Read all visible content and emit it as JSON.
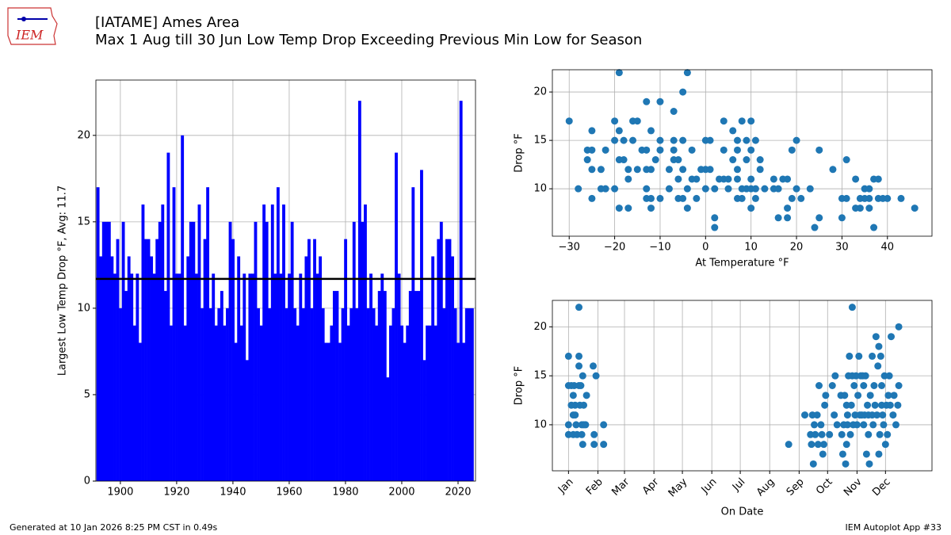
{
  "header": {
    "logo": "IEM",
    "title": "[IATAME] Ames Area",
    "subtitle": "Max 1 Aug till 30 Jun Low Temp Drop Exceeding Previous Min Low for Season"
  },
  "footer": {
    "left": "Generated at 10 Jan 2026 8:25 PM CST in 0.49s",
    "right": "IEM Autoplot App #33"
  },
  "chart_data": [
    {
      "type": "bar",
      "ylabel": "Largest Low Temp Drop °F, Avg: 11.7",
      "mean": 11.7,
      "color": "blue",
      "grid": true,
      "x": [
        1892,
        1893,
        1894,
        1895,
        1896,
        1897,
        1898,
        1899,
        1900,
        1901,
        1902,
        1903,
        1904,
        1905,
        1906,
        1907,
        1908,
        1909,
        1910,
        1911,
        1912,
        1913,
        1914,
        1915,
        1916,
        1917,
        1918,
        1919,
        1920,
        1921,
        1922,
        1923,
        1924,
        1925,
        1926,
        1927,
        1928,
        1929,
        1930,
        1931,
        1932,
        1933,
        1934,
        1935,
        1936,
        1937,
        1938,
        1939,
        1940,
        1941,
        1942,
        1943,
        1944,
        1945,
        1946,
        1947,
        1948,
        1949,
        1950,
        1951,
        1952,
        1953,
        1954,
        1955,
        1956,
        1957,
        1958,
        1959,
        1960,
        1961,
        1962,
        1963,
        1964,
        1965,
        1966,
        1967,
        1968,
        1969,
        1970,
        1971,
        1972,
        1973,
        1974,
        1975,
        1976,
        1977,
        1978,
        1979,
        1980,
        1981,
        1982,
        1983,
        1984,
        1985,
        1986,
        1987,
        1988,
        1989,
        1990,
        1991,
        1992,
        1993,
        1994,
        1995,
        1996,
        1997,
        1998,
        1999,
        2000,
        2001,
        2002,
        2003,
        2004,
        2005,
        2006,
        2007,
        2008,
        2009,
        2010,
        2011,
        2012,
        2013,
        2014,
        2015,
        2016,
        2017,
        2018,
        2019,
        2020,
        2021,
        2022,
        2023,
        2024,
        2025
      ],
      "values": [
        17,
        13,
        15,
        15,
        15,
        13,
        12,
        14,
        10,
        15,
        11,
        13,
        12,
        9,
        12,
        8,
        16,
        14,
        14,
        13,
        12,
        14,
        15,
        16,
        11,
        19,
        9,
        17,
        12,
        12,
        20,
        9,
        13,
        15,
        15,
        12,
        16,
        10,
        14,
        17,
        10,
        12,
        9,
        10,
        11,
        9,
        10,
        15,
        14,
        8,
        13,
        9,
        12,
        7,
        12,
        12,
        15,
        10,
        9,
        16,
        15,
        10,
        16,
        12,
        17,
        12,
        16,
        10,
        12,
        15,
        10,
        9,
        12,
        10,
        13,
        14,
        10,
        14,
        12,
        13,
        10,
        8,
        8,
        9,
        11,
        11,
        8,
        10,
        14,
        9,
        10,
        15,
        10,
        22,
        15,
        16,
        10,
        12,
        10,
        9,
        11,
        12,
        11,
        6,
        9,
        10,
        19,
        12,
        9,
        8,
        9,
        11,
        17,
        11,
        11,
        18,
        7,
        9,
        9,
        13,
        9,
        14,
        15,
        10,
        14,
        14,
        13,
        10,
        8,
        22,
        8,
        10,
        10,
        10
      ],
      "xlim": [
        1891.3,
        2026.2
      ],
      "xticks": [
        1900,
        1920,
        1940,
        1960,
        1980,
        2000,
        2020
      ],
      "ylim": [
        0,
        23.2
      ],
      "yticks": [
        0,
        5,
        10,
        15,
        20
      ]
    },
    {
      "type": "scatter",
      "xlabel": "At Temperature °F",
      "ylabel": "Drop °F",
      "color": "#1f77b4",
      "grid": true,
      "x": [
        -30,
        -28,
        -26,
        -26,
        -25,
        -25,
        -25,
        -25,
        -23,
        -23,
        -22,
        -22,
        -20,
        -20,
        -20,
        -19,
        -19,
        -19,
        -19,
        -18,
        -18,
        -17,
        -17,
        -17,
        -16,
        -16,
        -15,
        -15,
        -14,
        -13,
        -13,
        -13,
        -13,
        -13,
        -12,
        -12,
        -12,
        -12,
        -11,
        -10,
        -10,
        -10,
        -10,
        -8,
        -8,
        -7,
        -7,
        -7,
        -7,
        -6,
        -6,
        -6,
        -5,
        -5,
        -5,
        -5,
        -4,
        -4,
        -4,
        -3,
        -3,
        -2,
        -2,
        -1,
        0,
        0,
        0,
        1,
        1,
        2,
        2,
        2,
        3,
        4,
        4,
        4,
        5,
        5,
        6,
        6,
        7,
        7,
        7,
        7,
        7,
        8,
        8,
        8,
        9,
        9,
        9,
        10,
        10,
        10,
        10,
        10,
        11,
        11,
        11,
        12,
        12,
        13,
        15,
        15,
        16,
        17,
        18,
        18,
        18,
        16,
        19,
        19,
        20,
        20,
        21,
        23,
        24,
        25,
        25,
        28,
        30,
        30,
        31,
        31,
        33,
        33,
        34,
        34,
        35,
        36,
        36,
        37,
        37,
        38,
        38,
        39,
        40,
        43,
        46,
        36,
        35
      ],
      "values": [
        17,
        10,
        14,
        13,
        16,
        14,
        12,
        9,
        12,
        10,
        14,
        10,
        17,
        15,
        10,
        22,
        16,
        13,
        8,
        15,
        13,
        12,
        11,
        8,
        17,
        15,
        17,
        12,
        14,
        19,
        14,
        12,
        10,
        9,
        16,
        12,
        9,
        8,
        13,
        19,
        15,
        9,
        14,
        12,
        10,
        18,
        15,
        14,
        13,
        13,
        11,
        9,
        20,
        15,
        12,
        9,
        22,
        8,
        10,
        14,
        11,
        11,
        9,
        12,
        15,
        12,
        10,
        15,
        12,
        7,
        6,
        10,
        11,
        17,
        14,
        11,
        11,
        10,
        16,
        13,
        15,
        14,
        12,
        11,
        9,
        17,
        10,
        9,
        15,
        13,
        10,
        17,
        14,
        11,
        10,
        8,
        15,
        9,
        10,
        13,
        12,
        10,
        11,
        10,
        10,
        11,
        11,
        8,
        7,
        7,
        14,
        9,
        15,
        10,
        9,
        10,
        6,
        14,
        7,
        12,
        9,
        7,
        13,
        9,
        11,
        8,
        9,
        8,
        10,
        9,
        8,
        11,
        6,
        11,
        9,
        9,
        9,
        9,
        8,
        10,
        9
      ],
      "xlim": [
        -33.7,
        49.8
      ],
      "xticks": [
        {
          "value": -30,
          "label": "−30"
        },
        {
          "value": -20,
          "label": "−20"
        },
        {
          "value": -10,
          "label": "−10"
        },
        0,
        10,
        20,
        30,
        40
      ],
      "ylim": [
        5.1,
        22.3
      ],
      "yticks": [
        10,
        15,
        20
      ]
    },
    {
      "type": "scatter",
      "xlabel": "On Date",
      "ylabel": "Drop °F",
      "color": "#1f77b4",
      "grid": true,
      "x": [
        0,
        0,
        0,
        0,
        3,
        3,
        5,
        5,
        5,
        6,
        7,
        7,
        8,
        9,
        11,
        11,
        11,
        11,
        12,
        13,
        14,
        14,
        15,
        15,
        16,
        16,
        18,
        19,
        26,
        27,
        27,
        29,
        37,
        37,
        232,
        249,
        255,
        256,
        257,
        258,
        259,
        260,
        262,
        263,
        264,
        266,
        267,
        268,
        269,
        270,
        271,
        275,
        278,
        280,
        281,
        283,
        287,
        288,
        289,
        290,
        291,
        292,
        293,
        293,
        294,
        294,
        295,
        296,
        297,
        298,
        299,
        299,
        300,
        301,
        302,
        303,
        304,
        305,
        306,
        307,
        308,
        309,
        310,
        311,
        311,
        312,
        313,
        314,
        315,
        316,
        316,
        317,
        318,
        320,
        320,
        321,
        322,
        323,
        324,
        325,
        326,
        327,
        327,
        328,
        329,
        330,
        330,
        331,
        332,
        333,
        334,
        335,
        336,
        337,
        338,
        339,
        340,
        342,
        343,
        345,
        348,
        348,
        347
      ],
      "values": [
        17,
        14,
        10,
        9,
        14,
        12,
        13,
        11,
        9,
        14,
        12,
        11,
        10,
        9,
        22,
        17,
        16,
        14,
        12,
        14,
        10,
        9,
        15,
        8,
        12,
        10,
        10,
        13,
        16,
        9,
        8,
        15,
        10,
        8,
        8,
        11,
        9,
        8,
        11,
        6,
        10,
        9,
        11,
        8,
        14,
        10,
        9,
        7,
        8,
        12,
        13,
        9,
        14,
        11,
        15,
        10,
        13,
        9,
        7,
        10,
        13,
        6,
        8,
        12,
        10,
        11,
        15,
        17,
        9,
        12,
        15,
        22,
        10,
        14,
        11,
        15,
        10,
        13,
        17,
        11,
        15,
        11,
        15,
        10,
        14,
        11,
        15,
        7,
        12,
        11,
        9,
        6,
        13,
        17,
        11,
        10,
        14,
        12,
        19,
        11,
        16,
        7,
        18,
        9,
        17,
        14,
        12,
        11,
        10,
        15,
        8,
        12,
        9,
        13,
        15,
        12,
        19,
        11,
        13,
        10,
        14,
        20,
        12
      ],
      "xlim": [
        -17,
        383
      ],
      "xticks": [
        {
          "value": 0,
          "label": "Jan"
        },
        {
          "value": 31,
          "label": "Feb"
        },
        {
          "value": 59,
          "label": "Mar"
        },
        {
          "value": 90,
          "label": "Apr"
        },
        {
          "value": 120,
          "label": "May"
        },
        {
          "value": 151,
          "label": "Jun"
        },
        {
          "value": 181,
          "label": "Jul"
        },
        {
          "value": 212,
          "label": "Aug"
        },
        {
          "value": 243,
          "label": "Sep"
        },
        {
          "value": 273,
          "label": "Oct"
        },
        {
          "value": 304,
          "label": "Nov"
        },
        {
          "value": 334,
          "label": "Dec"
        }
      ],
      "xtick_rotation": 45,
      "ylim": [
        5.3,
        22.7
      ],
      "yticks": [
        10,
        15,
        20
      ]
    }
  ]
}
